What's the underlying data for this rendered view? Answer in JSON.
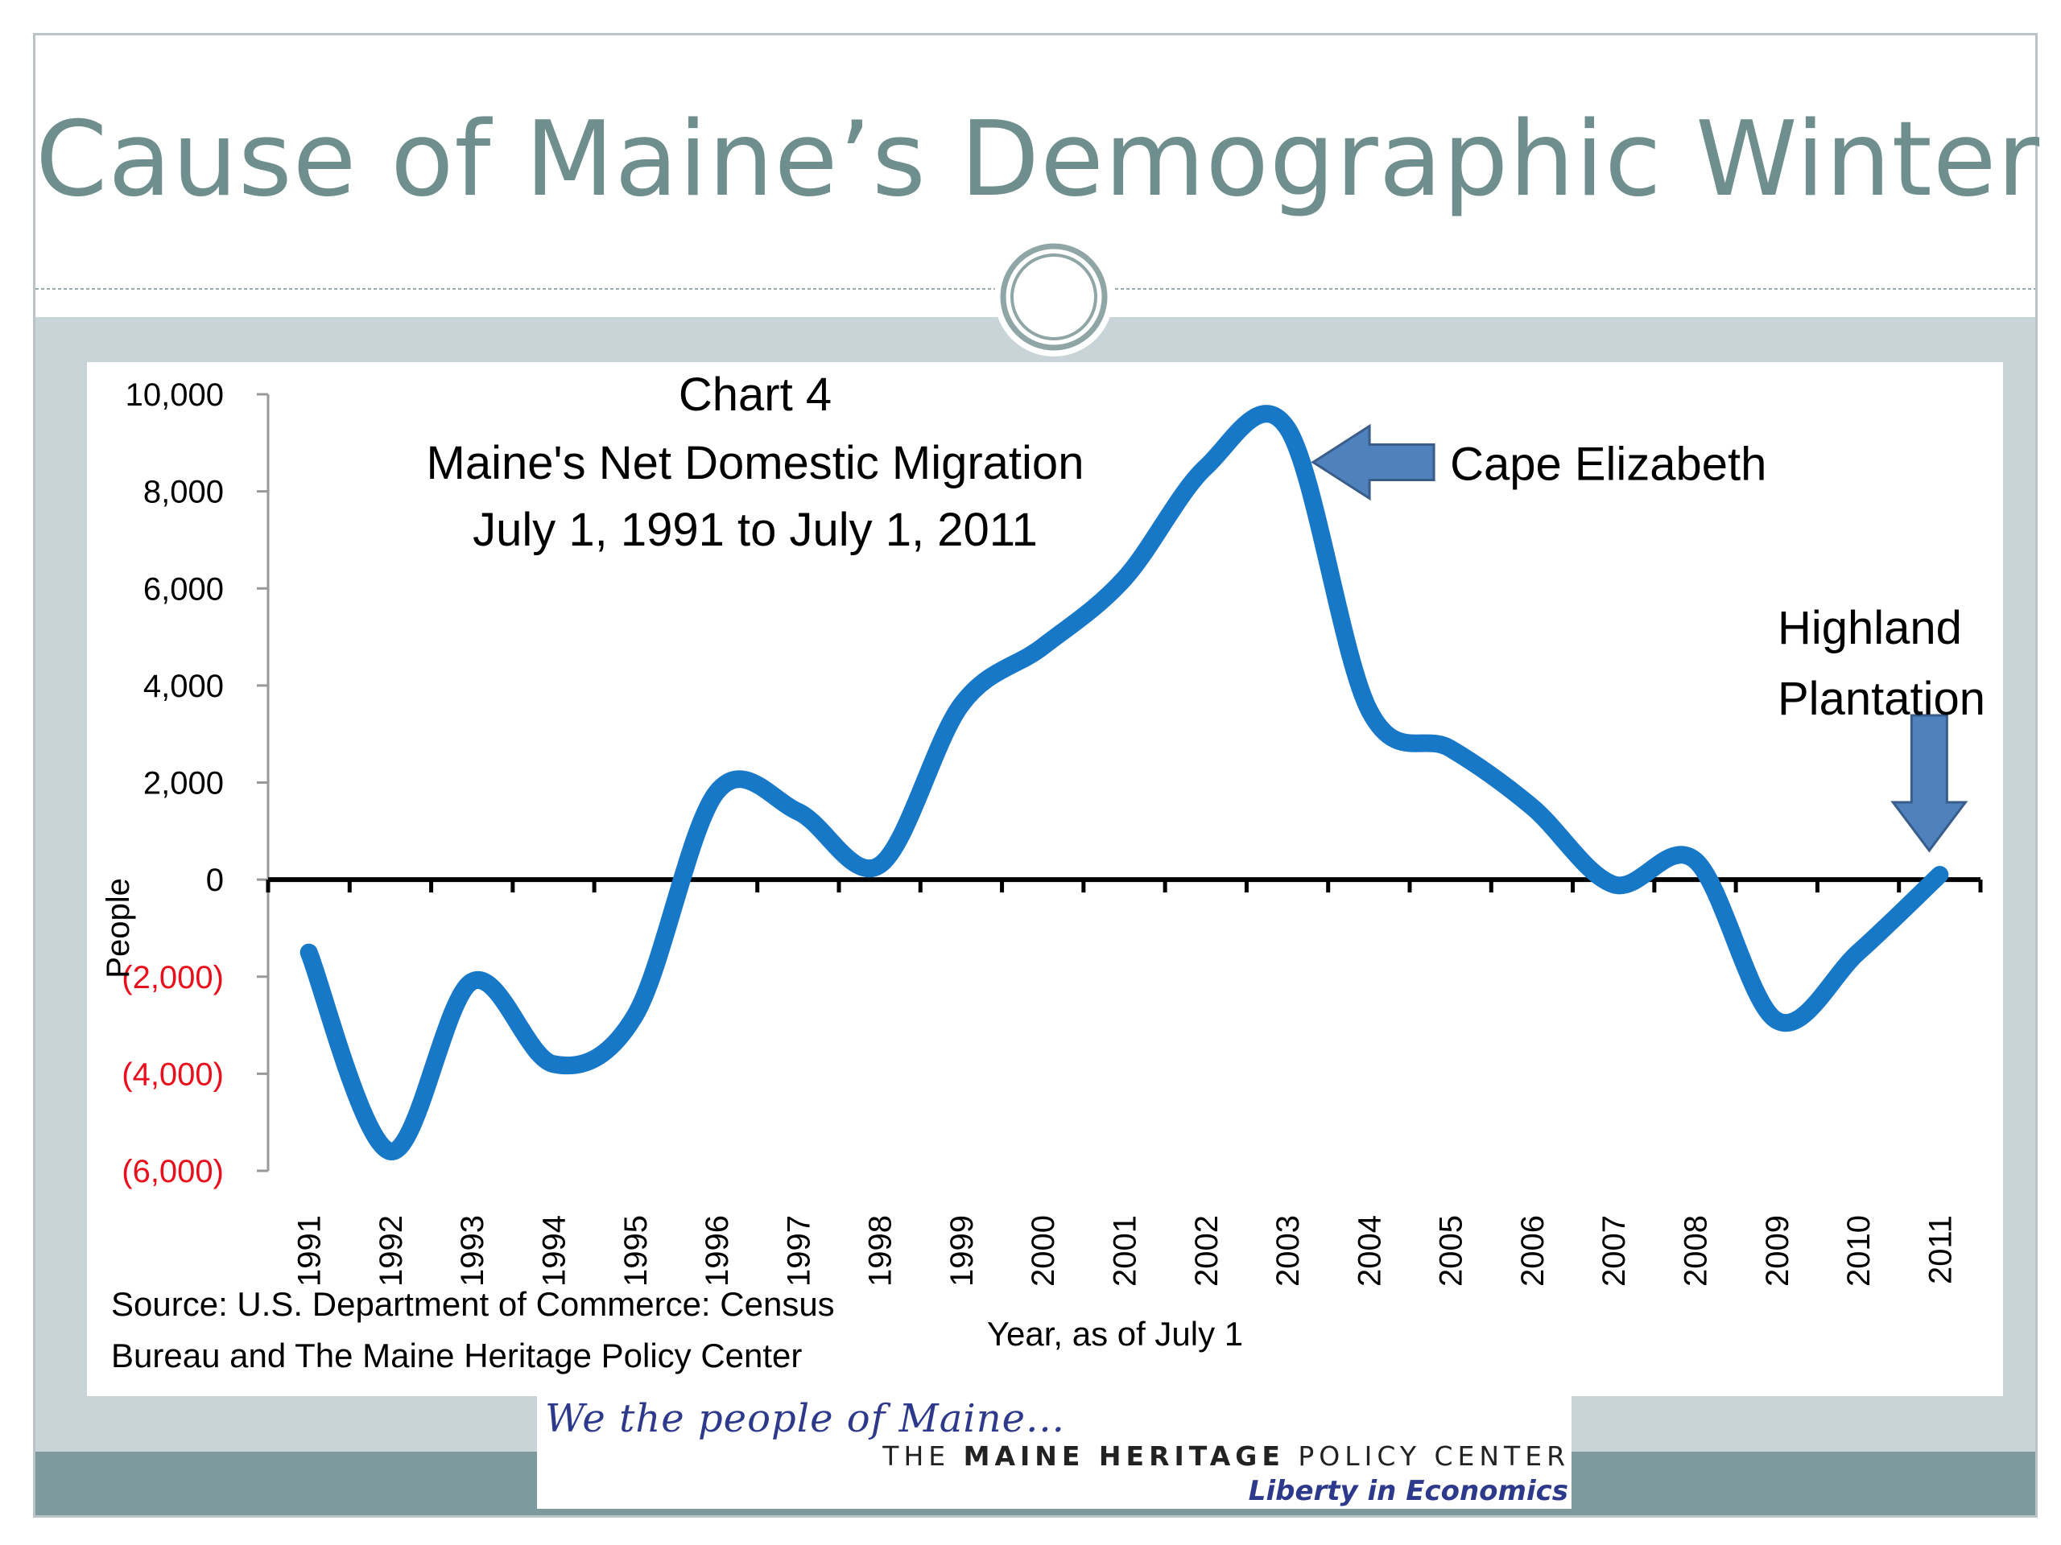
{
  "slide": {
    "title": "Cause of Maine’s Demographic Winter"
  },
  "chart_data": {
    "type": "line",
    "title_lines": [
      "Chart 4",
      "Maine's Net Domestic Migration",
      "July 1, 1991 to July 1, 2011"
    ],
    "xlabel": "Year, as of July 1",
    "ylabel": "People",
    "x": [
      "1991",
      "1992",
      "1993",
      "1994",
      "1995",
      "1996",
      "1997",
      "1998",
      "1999",
      "2000",
      "2001",
      "2002",
      "2003",
      "2004",
      "2005",
      "2006",
      "2007",
      "2008",
      "2009",
      "2010",
      "2011"
    ],
    "series": [
      {
        "values": [
          -1500,
          -5600,
          -2100,
          -3800,
          -2800,
          1800,
          1400,
          300,
          3600,
          4800,
          6200,
          8500,
          9300,
          3500,
          2700,
          1500,
          -100,
          400,
          -2900,
          -1500,
          100
        ]
      }
    ],
    "ylim": [
      -6000,
      10000
    ],
    "yticks": [
      10000,
      8000,
      6000,
      4000,
      2000,
      0,
      -2000,
      -4000,
      -6000
    ],
    "ytick_labels": [
      "10,000",
      "8,000",
      "6,000",
      "4,000",
      "2,000",
      "0",
      "(2,000)",
      "(4,000)",
      "(6,000)"
    ],
    "annotations": [
      {
        "text": "Cape Elizabeth",
        "arrow": "left",
        "points_to_x": "2003"
      },
      {
        "text": "Highland Plantation",
        "text_lines": [
          "Highland",
          "Plantation"
        ],
        "arrow": "down",
        "points_to_x": "2011"
      }
    ],
    "source_lines": [
      "Source: U.S. Department of Commerce: Census",
      "Bureau and The Maine Heritage Policy Center"
    ],
    "colors": {
      "line": "#1878c8",
      "negative_tick": "#e8101c",
      "arrow_fill": "#4f81bd",
      "arrow_stroke": "#385d8a"
    }
  },
  "logo": {
    "script": "We the people of Maine...",
    "org_light_1": "THE ",
    "org_bold": "MAINE HERITAGE",
    "org_light_2": " POLICY CENTER",
    "tagline": "Liberty in Economics"
  }
}
